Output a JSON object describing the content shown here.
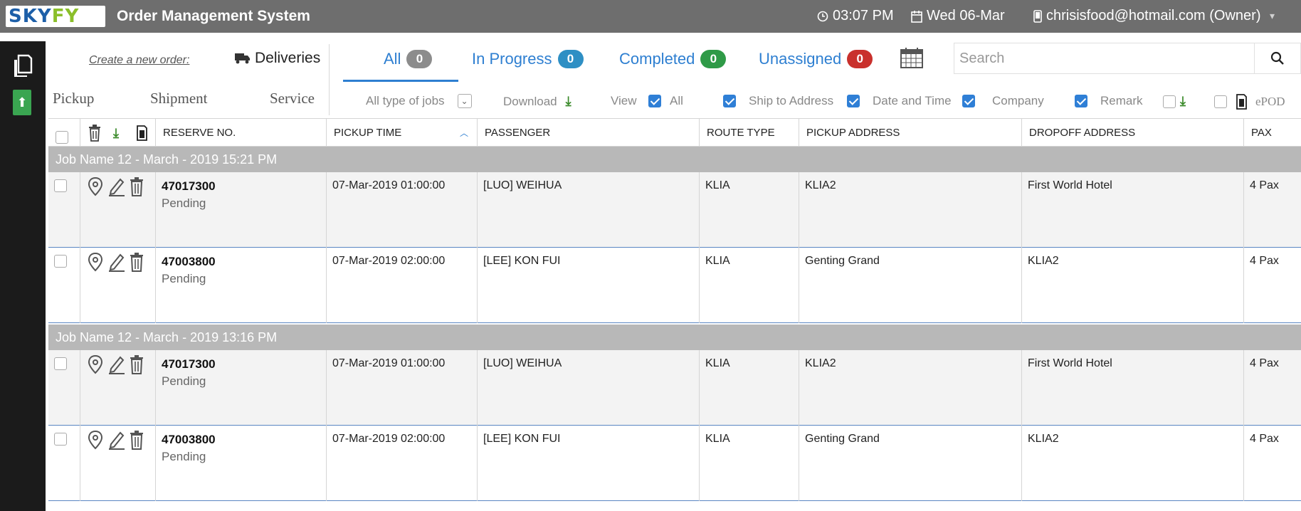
{
  "header": {
    "logo_left": "SKY",
    "logo_right": "FY",
    "title": "Order Management System",
    "time": "03:07 PM",
    "date": "Wed 06-Mar",
    "user": "chrisisfood@hotmail.com (Owner)"
  },
  "options": {
    "create_link": "Create a new order:",
    "deliveries": "Deliveries",
    "types": [
      "Pickup",
      "Shipment",
      "Service"
    ]
  },
  "status_tabs": [
    {
      "label": "All",
      "count": "0",
      "color": "#8c8c8c"
    },
    {
      "label": "In Progress",
      "count": "0",
      "color": "#2e8fc4"
    },
    {
      "label": "Completed",
      "count": "0",
      "color": "#2f9a47"
    },
    {
      "label": "Unassigned",
      "count": "0",
      "color": "#c9302c"
    }
  ],
  "search": {
    "placeholder": "Search"
  },
  "filters": {
    "job_type": "All type of jobs",
    "download": "Download",
    "view": "View",
    "all": "All",
    "ship_to_address": "Ship to Address",
    "date_and_time": "Date and Time",
    "company": "Company",
    "remark": "Remark",
    "epod": "ePOD"
  },
  "columns": [
    "RESERVE NO.",
    "PICKUP TIME",
    "PASSENGER",
    "ROUTE TYPE",
    "PICKUP ADDRESS",
    "DROPOFF ADDRESS",
    "PAX"
  ],
  "groups": [
    {
      "name": "Job Name 12 - March - 2019   15:21 PM",
      "rows": [
        {
          "reserve_no": "47017300",
          "status": "Pending",
          "pickup_time": "07-Mar-2019 01:00:00",
          "passenger": "[LUO] WEIHUA",
          "route_type": "KLIA",
          "pickup_address": "KLIA2",
          "dropoff_address": "First World Hotel",
          "pax": "4 Pax"
        },
        {
          "reserve_no": "47003800",
          "status": "Pending",
          "pickup_time": "07-Mar-2019 02:00:00",
          "passenger": "[LEE] KON FUI",
          "route_type": "KLIA",
          "pickup_address": "Genting Grand",
          "dropoff_address": "KLIA2",
          "pax": "4 Pax"
        }
      ]
    },
    {
      "name": "Job Name 12 - March - 2019   13:16 PM",
      "rows": [
        {
          "reserve_no": "47017300",
          "status": "Pending",
          "pickup_time": "07-Mar-2019 01:00:00",
          "passenger": "[LUO] WEIHUA",
          "route_type": "KLIA",
          "pickup_address": "KLIA2",
          "dropoff_address": "First World Hotel",
          "pax": "4 Pax"
        },
        {
          "reserve_no": "47003800",
          "status": "Pending",
          "pickup_time": "07-Mar-2019 02:00:00",
          "passenger": "[LEE] KON FUI",
          "route_type": "KLIA",
          "pickup_address": "Genting Grand",
          "dropoff_address": "KLIA2",
          "pax": "4 Pax"
        }
      ]
    }
  ]
}
